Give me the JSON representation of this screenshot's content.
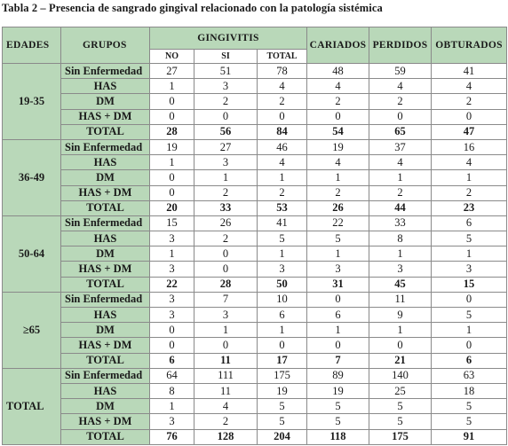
{
  "caption": "Tabla 2 – Presencia de sangrado gingival relacionado con la patología sistémica",
  "headers": {
    "edades": "EDADES",
    "grupos": "GRUPOS",
    "gingivitis": "GINGIVITIS",
    "cariados": "CARIADOS",
    "perdidos": "PERDIDOS",
    "obturados": "OBTURADOS",
    "no": "NO",
    "si": "SI",
    "total": "TOTAL"
  },
  "groups": [
    {
      "age": "19-35",
      "rows": [
        {
          "label": "Sin Enfermedad",
          "values": [
            "27",
            "51",
            "78",
            "48",
            "59",
            "41"
          ]
        },
        {
          "label": "HAS",
          "values": [
            "1",
            "3",
            "4",
            "4",
            "4",
            "4"
          ]
        },
        {
          "label": "DM",
          "values": [
            "0",
            "2",
            "2",
            "2",
            "2",
            "2"
          ]
        },
        {
          "label": "HAS + DM",
          "values": [
            "0",
            "0",
            "0",
            "0",
            "0",
            "0"
          ]
        },
        {
          "label": "TOTAL",
          "values": [
            "28",
            "56",
            "84",
            "54",
            "65",
            "47"
          ]
        }
      ]
    },
    {
      "age": "36-49",
      "rows": [
        {
          "label": "Sin Enfermedad",
          "values": [
            "19",
            "27",
            "46",
            "19",
            "37",
            "16"
          ]
        },
        {
          "label": "HAS",
          "values": [
            "1",
            "3",
            "4",
            "4",
            "4",
            "4"
          ]
        },
        {
          "label": "DM",
          "values": [
            "0",
            "1",
            "1",
            "1",
            "1",
            "1"
          ]
        },
        {
          "label": "HAS + DM",
          "values": [
            "0",
            "2",
            "2",
            "2",
            "2",
            "2"
          ]
        },
        {
          "label": "TOTAL",
          "values": [
            "20",
            "33",
            "53",
            "26",
            "44",
            "23"
          ]
        }
      ]
    },
    {
      "age": "50-64",
      "rows": [
        {
          "label": "Sin Enfermedad",
          "values": [
            "15",
            "26",
            "41",
            "22",
            "33",
            "6"
          ]
        },
        {
          "label": "HAS",
          "values": [
            "3",
            "2",
            "5",
            "5",
            "8",
            "5"
          ]
        },
        {
          "label": "DM",
          "values": [
            "1",
            "0",
            "1",
            "1",
            "1",
            "1"
          ]
        },
        {
          "label": "HAS + DM",
          "values": [
            "3",
            "0",
            "3",
            "3",
            "3",
            "3"
          ]
        },
        {
          "label": "TOTAL",
          "values": [
            "22",
            "28",
            "50",
            "31",
            "45",
            "15"
          ]
        }
      ]
    },
    {
      "age": "≥65",
      "rows": [
        {
          "label": "Sin Enfermedad",
          "values": [
            "3",
            "7",
            "10",
            "0",
            "11",
            "0"
          ]
        },
        {
          "label": "HAS",
          "values": [
            "3",
            "3",
            "6",
            "6",
            "9",
            "5"
          ]
        },
        {
          "label": "DM",
          "values": [
            "0",
            "1",
            "1",
            "1",
            "1",
            "1"
          ]
        },
        {
          "label": "HAS + DM",
          "values": [
            "0",
            "0",
            "0",
            "0",
            "0",
            "0"
          ]
        },
        {
          "label": "TOTAL",
          "values": [
            "6",
            "11",
            "17",
            "7",
            "21",
            "6"
          ]
        }
      ]
    },
    {
      "age": "TOTAL",
      "rows": [
        {
          "label": "Sin Enfermedad",
          "values": [
            "64",
            "111",
            "175",
            "89",
            "140",
            "63"
          ]
        },
        {
          "label": "HAS",
          "values": [
            "8",
            "11",
            "19",
            "19",
            "25",
            "18"
          ]
        },
        {
          "label": "DM",
          "values": [
            "1",
            "4",
            "5",
            "5",
            "5",
            "5"
          ]
        },
        {
          "label": "HAS + DM",
          "values": [
            "3",
            "2",
            "5",
            "5",
            "5",
            "5"
          ]
        },
        {
          "label": "TOTAL",
          "values": [
            "76",
            "128",
            "204",
            "118",
            "175",
            "91"
          ]
        }
      ]
    }
  ]
}
